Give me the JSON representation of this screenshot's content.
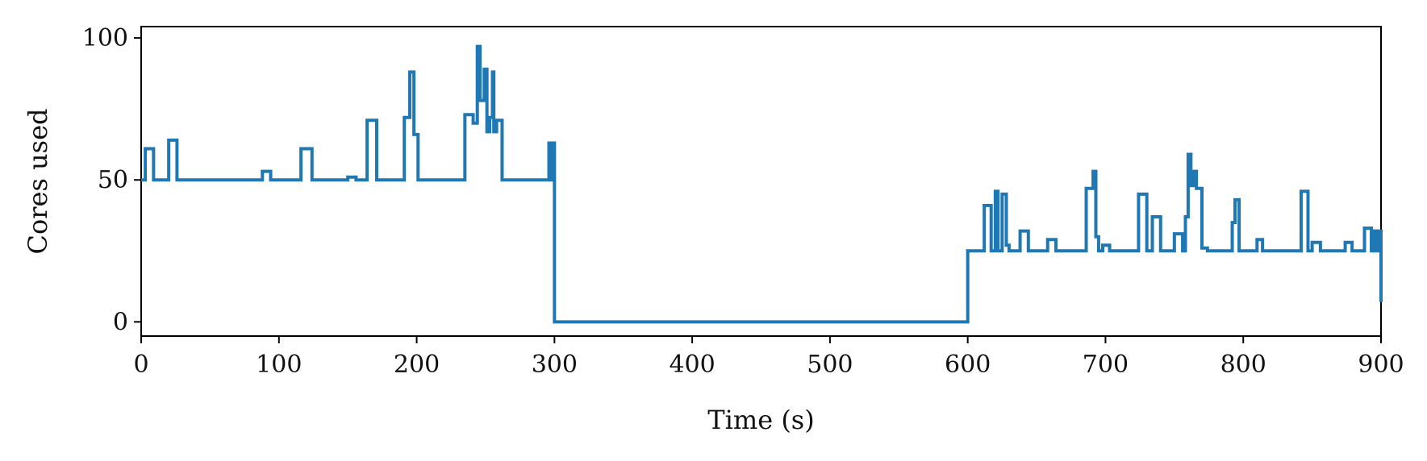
{
  "chart_data": {
    "type": "line",
    "title": "",
    "xlabel": "Time (s)",
    "ylabel": "Cores used",
    "xlim": [
      0,
      900
    ],
    "ylim": [
      -5,
      104
    ],
    "xticks": [
      0,
      100,
      200,
      300,
      400,
      500,
      600,
      700,
      800,
      900
    ],
    "yticks": [
      0,
      50,
      100
    ],
    "grid": false,
    "legend": "none",
    "step": true,
    "series": [
      {
        "color": "#1f77b4",
        "x": [
          0,
          3,
          9,
          20,
          26,
          88,
          94,
          116,
          124,
          150,
          156,
          164,
          171,
          191,
          195,
          198,
          201,
          235,
          241,
          244,
          246,
          249,
          251,
          253,
          255,
          256,
          258,
          262,
          296,
          298,
          299,
          300,
          600,
          612,
          617,
          620,
          622,
          625,
          628,
          630,
          638,
          644,
          658,
          664,
          686,
          691,
          693,
          695,
          698,
          703,
          724,
          730,
          734,
          740,
          750,
          756,
          758,
          760,
          762,
          764,
          766,
          770,
          774,
          792,
          794,
          797,
          810,
          814,
          842,
          847,
          850,
          856,
          874,
          879,
          888,
          893,
          895,
          897,
          898,
          900
        ],
        "y": [
          50,
          61,
          50,
          64,
          50,
          53,
          50,
          61,
          50,
          51,
          50,
          71,
          50,
          72,
          88,
          66,
          50,
          73,
          70,
          97,
          78,
          89,
          67,
          72,
          88,
          67,
          71,
          50,
          63,
          50,
          63,
          0,
          25,
          41,
          25,
          46,
          25,
          45,
          27,
          25,
          32,
          25,
          29,
          25,
          47,
          53,
          30,
          25,
          27,
          25,
          45,
          25,
          37,
          25,
          31,
          25,
          37,
          59,
          48,
          53,
          47,
          26,
          25,
          35,
          43,
          25,
          29,
          25,
          46,
          25,
          28,
          25,
          28,
          25,
          33,
          25,
          32,
          25,
          32,
          7
        ]
      }
    ]
  }
}
